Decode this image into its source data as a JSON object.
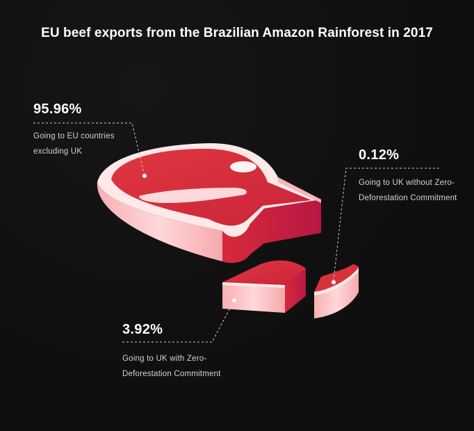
{
  "chart_data": {
    "type": "pie",
    "title": "EU beef exports from the Brazilian Amazon Rainforest in 2017",
    "slices": [
      {
        "label": "Going to EU countries excluding UK",
        "value": 95.96,
        "display": "95.96%"
      },
      {
        "label": "Going to UK without Zero-Deforestation Commitment",
        "value": 0.12,
        "display": "0.12%"
      },
      {
        "label": "Going to UK with Zero-Deforestation Commitment",
        "value": 3.92,
        "display": "3.92%"
      }
    ]
  },
  "colors": {
    "background": "#0f0f0f",
    "meat_top": "#d8323d",
    "meat_side": "#c41f3f",
    "fat_top": "#ffe9ec",
    "fat_side": "#f6b6b8",
    "text": "#ffffff",
    "muted_text": "#d4d4d4"
  }
}
